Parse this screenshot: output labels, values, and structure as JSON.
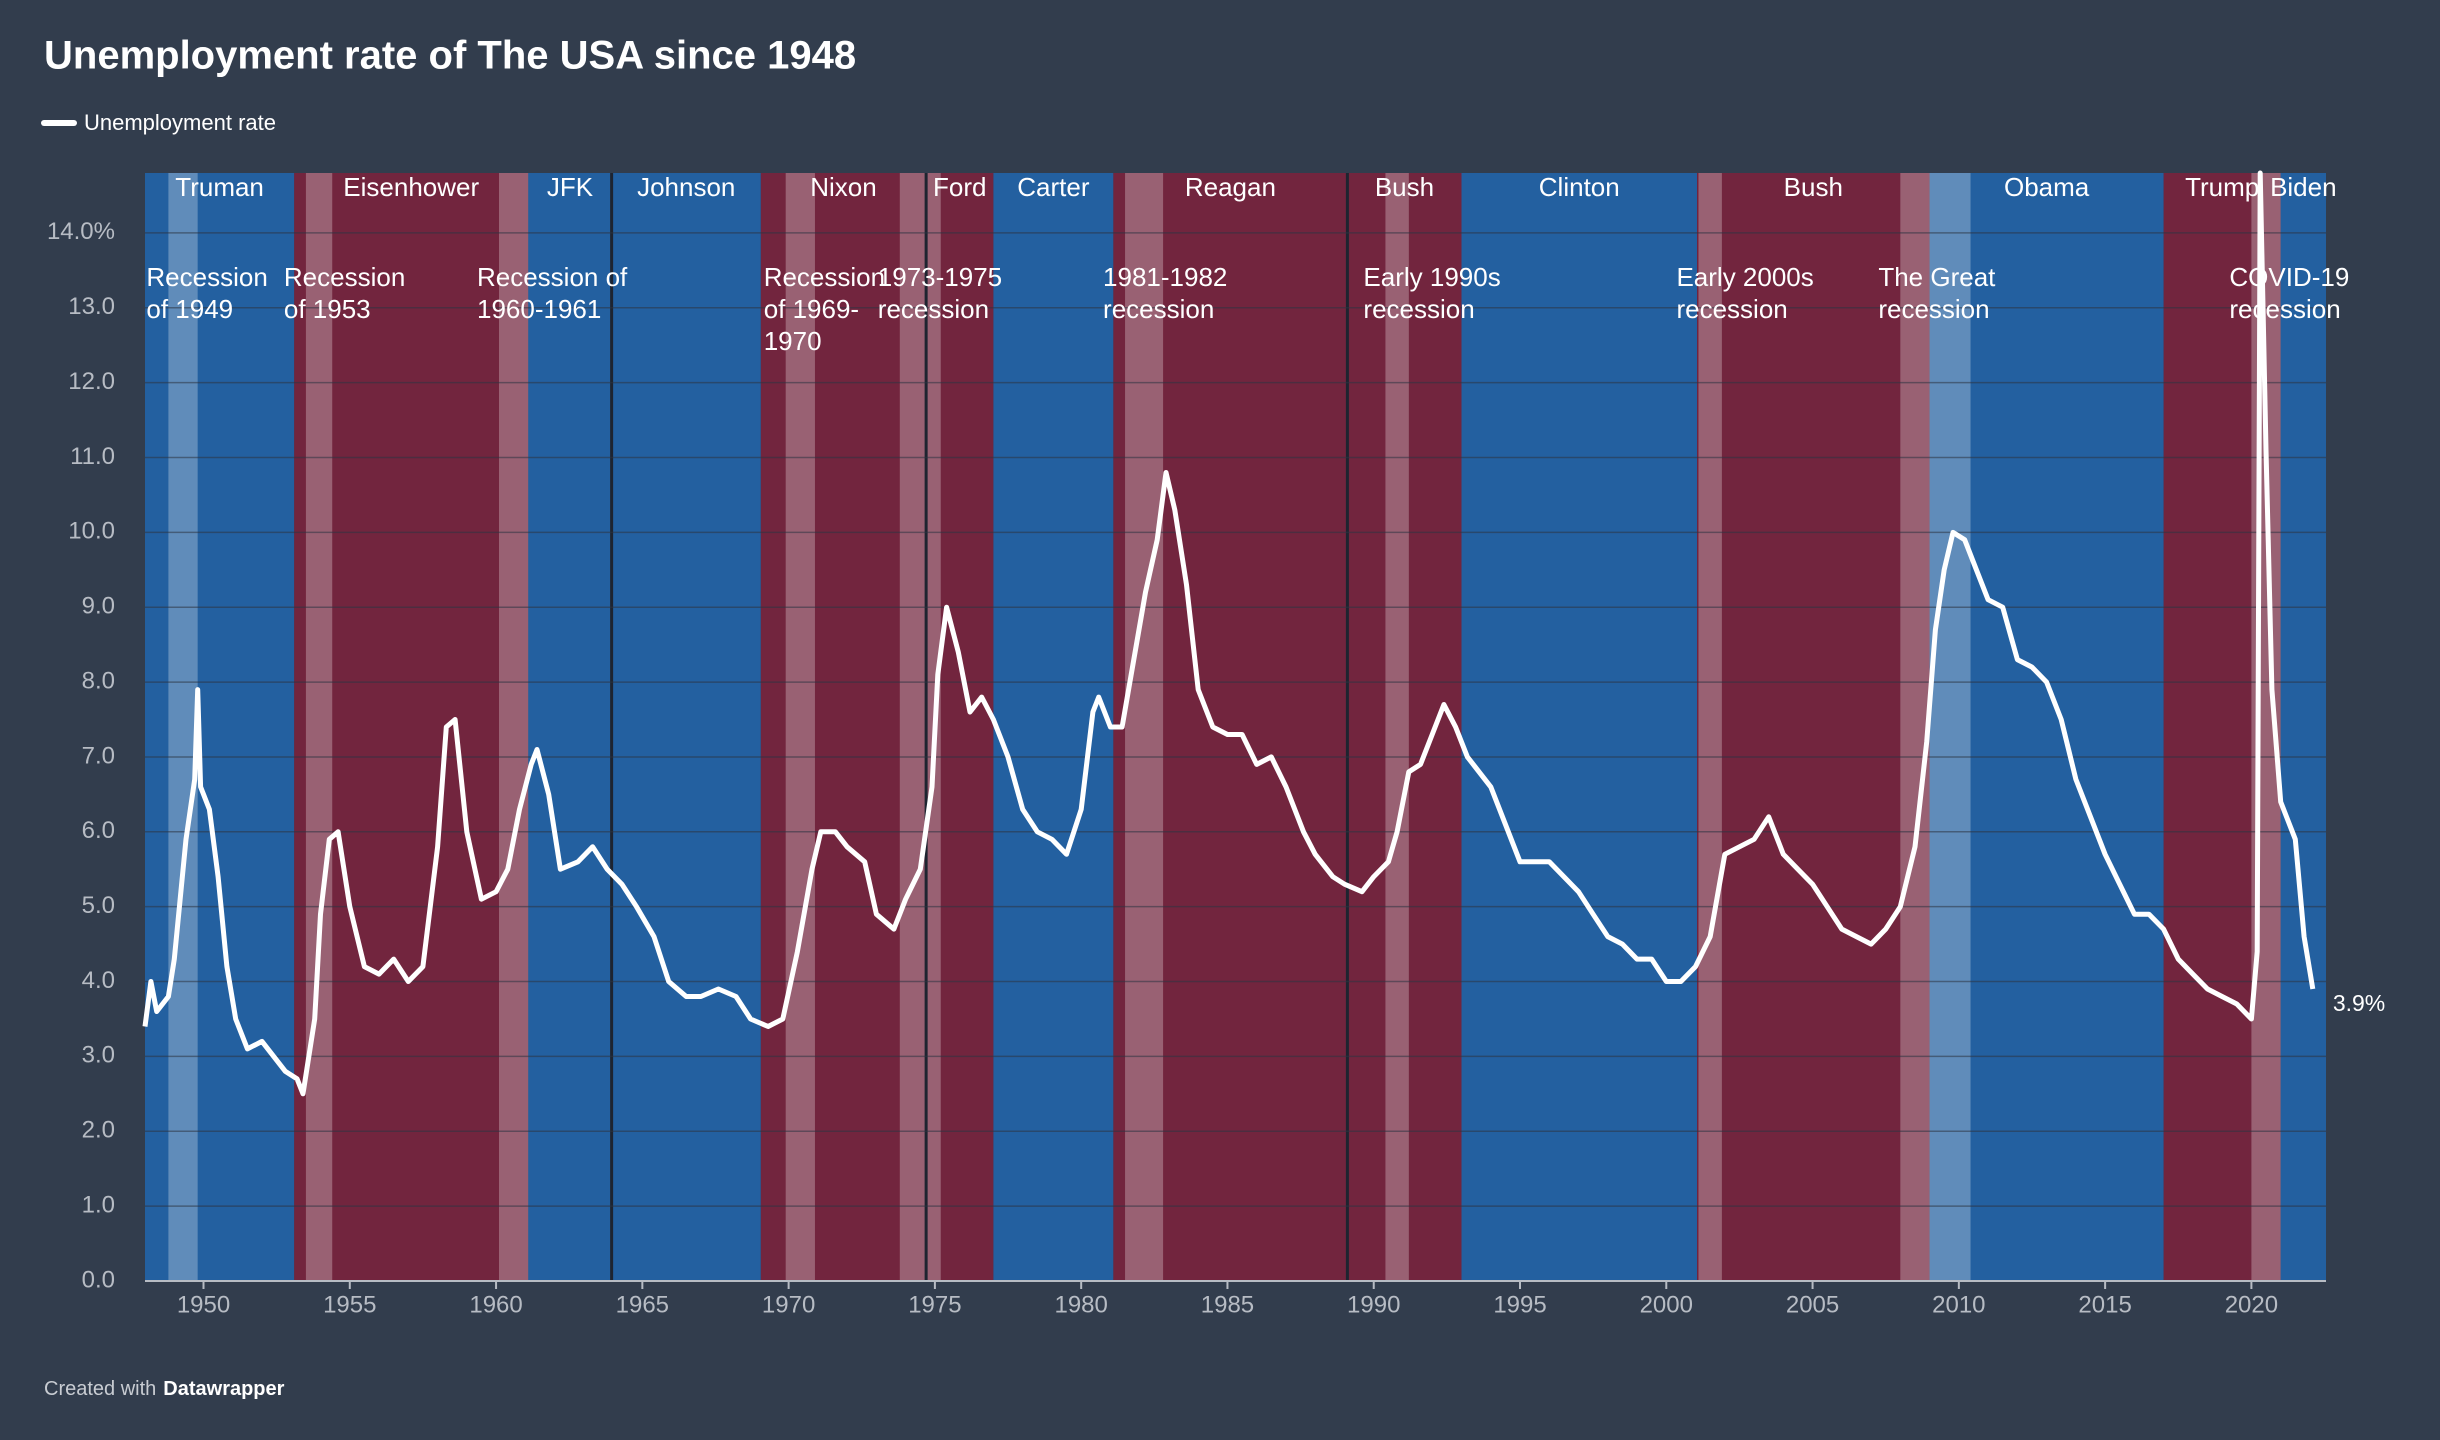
{
  "chart_data": {
    "type": "line",
    "title": "Unemployment rate of The USA since 1948",
    "footer": {
      "prefix": "Created with",
      "brand": "Datawrapper"
    },
    "x": [
      1948.0,
      1948.2,
      1948.4,
      1948.8,
      1949.0,
      1949.4,
      1949.7,
      1949.8,
      1949.9,
      1950.2,
      1950.5,
      1950.8,
      1951.1,
      1951.5,
      1952.0,
      1952.4,
      1952.8,
      1953.2,
      1953.4,
      1953.8,
      1954.0,
      1954.3,
      1954.6,
      1955.0,
      1955.5,
      1956.0,
      1956.5,
      1957.0,
      1957.5,
      1958.0,
      1958.3,
      1958.6,
      1959.0,
      1959.5,
      1960.0,
      1960.4,
      1960.8,
      1961.2,
      1961.4,
      1961.8,
      1962.2,
      1962.8,
      1963.3,
      1963.8,
      1964.3,
      1964.8,
      1965.4,
      1965.9,
      1966.5,
      1967.0,
      1967.6,
      1968.2,
      1968.7,
      1969.3,
      1969.8,
      1970.3,
      1970.8,
      1971.1,
      1971.6,
      1972.0,
      1972.6,
      1973.0,
      1973.6,
      1974.0,
      1974.5,
      1974.9,
      1975.1,
      1975.4,
      1975.8,
      1976.2,
      1976.6,
      1977.0,
      1977.5,
      1978.0,
      1978.5,
      1979.0,
      1979.5,
      1980.0,
      1980.4,
      1980.6,
      1981.0,
      1981.4,
      1981.8,
      1982.2,
      1982.6,
      1982.9,
      1983.2,
      1983.6,
      1984.0,
      1984.5,
      1985.0,
      1985.5,
      1986.0,
      1986.5,
      1987.0,
      1987.6,
      1988.0,
      1988.6,
      1989.0,
      1989.6,
      1990.0,
      1990.5,
      1990.8,
      1991.2,
      1991.6,
      1992.0,
      1992.4,
      1992.8,
      1993.2,
      1993.6,
      1994.0,
      1994.5,
      1995.0,
      1995.5,
      1996.0,
      1996.5,
      1997.0,
      1997.5,
      1998.0,
      1998.5,
      1999.0,
      1999.5,
      2000.0,
      2000.5,
      2001.0,
      2001.5,
      2002.0,
      2002.5,
      2003.0,
      2003.5,
      2004.0,
      2004.5,
      2005.0,
      2005.5,
      2006.0,
      2006.5,
      2007.0,
      2007.5,
      2008.0,
      2008.5,
      2008.9,
      2009.2,
      2009.5,
      2009.8,
      2010.2,
      2010.6,
      2011.0,
      2011.5,
      2012.0,
      2012.5,
      2013.0,
      2013.5,
      2014.0,
      2014.5,
      2015.0,
      2015.5,
      2016.0,
      2016.5,
      2017.0,
      2017.5,
      2018.0,
      2018.5,
      2019.0,
      2019.5,
      2020.0,
      2020.2,
      2020.3,
      2020.5,
      2020.7,
      2021.0,
      2021.5,
      2021.8,
      2022.1
    ],
    "series": [
      {
        "name": "Unemployment rate",
        "color": "#ffffff",
        "values": [
          3.4,
          4.0,
          3.6,
          3.8,
          4.3,
          5.9,
          6.7,
          7.9,
          6.6,
          6.3,
          5.4,
          4.2,
          3.5,
          3.1,
          3.2,
          3.0,
          2.8,
          2.7,
          2.5,
          3.5,
          4.9,
          5.9,
          6.0,
          5.0,
          4.2,
          4.1,
          4.3,
          4.0,
          4.2,
          5.8,
          7.4,
          7.5,
          6.0,
          5.1,
          5.2,
          5.5,
          6.3,
          6.9,
          7.1,
          6.5,
          5.5,
          5.6,
          5.8,
          5.5,
          5.3,
          5.0,
          4.6,
          4.0,
          3.8,
          3.8,
          3.9,
          3.8,
          3.5,
          3.4,
          3.5,
          4.4,
          5.5,
          6.0,
          6.0,
          5.8,
          5.6,
          4.9,
          4.7,
          5.1,
          5.5,
          6.6,
          8.1,
          9.0,
          8.4,
          7.6,
          7.8,
          7.5,
          7.0,
          6.3,
          6.0,
          5.9,
          5.7,
          6.3,
          7.6,
          7.8,
          7.4,
          7.4,
          8.3,
          9.2,
          9.9,
          10.8,
          10.3,
          9.3,
          7.9,
          7.4,
          7.3,
          7.3,
          6.9,
          7.0,
          6.6,
          6.0,
          5.7,
          5.4,
          5.3,
          5.2,
          5.4,
          5.6,
          6.0,
          6.8,
          6.9,
          7.3,
          7.7,
          7.4,
          7.0,
          6.8,
          6.6,
          6.1,
          5.6,
          5.6,
          5.6,
          5.4,
          5.2,
          4.9,
          4.6,
          4.5,
          4.3,
          4.3,
          4.0,
          4.0,
          4.2,
          4.6,
          5.7,
          5.8,
          5.9,
          6.2,
          5.7,
          5.5,
          5.3,
          5.0,
          4.7,
          4.6,
          4.5,
          4.7,
          5.0,
          5.8,
          7.2,
          8.7,
          9.5,
          10.0,
          9.9,
          9.5,
          9.1,
          9.0,
          8.3,
          8.2,
          8.0,
          7.5,
          6.7,
          6.2,
          5.7,
          5.3,
          4.9,
          4.9,
          4.7,
          4.3,
          4.1,
          3.9,
          3.8,
          3.7,
          3.5,
          4.4,
          14.8,
          11.1,
          7.9,
          6.4,
          5.9,
          4.6,
          3.9
        ]
      }
    ],
    "annotations": [
      {
        "x": 2022.1,
        "y": 3.9,
        "label": "3.9%"
      }
    ],
    "presidencies": [
      {
        "name": "Truman",
        "start": 1948.0,
        "end": 1953.1,
        "color": "#2360a0"
      },
      {
        "name": "Eisenhower",
        "start": 1953.1,
        "end": 1961.1,
        "color": "#72253e"
      },
      {
        "name": "JFK",
        "start": 1961.1,
        "end": 1963.95,
        "color": "#2360a0"
      },
      {
        "name": "Johnson",
        "start": 1963.95,
        "end": 1969.05,
        "color": "#2360a0"
      },
      {
        "name": "Nixon",
        "start": 1969.05,
        "end": 1974.7,
        "color": "#72253e"
      },
      {
        "name": "Ford",
        "start": 1974.7,
        "end": 1977.0,
        "color": "#72253e"
      },
      {
        "name": "Carter",
        "start": 1977.0,
        "end": 1981.1,
        "color": "#2360a0"
      },
      {
        "name": "Reagan",
        "start": 1981.1,
        "end": 1989.1,
        "color": "#72253e"
      },
      {
        "name": "Bush",
        "start": 1989.1,
        "end": 1993.0,
        "color": "#72253e"
      },
      {
        "name": "Clinton",
        "start": 1993.0,
        "end": 2001.05,
        "color": "#2360a0"
      },
      {
        "name": "Bush",
        "start": 2001.05,
        "end": 2009.0,
        "color": "#72253e"
      },
      {
        "name": "Obama",
        "start": 2009.0,
        "end": 2017.0,
        "color": "#2360a0"
      },
      {
        "name": "Trump",
        "start": 2017.0,
        "end": 2021.0,
        "color": "#72253e"
      },
      {
        "name": "Biden",
        "start": 2021.0,
        "end": 2022.55,
        "color": "#2360a0"
      }
    ],
    "recessions": [
      {
        "label": [
          "Recession",
          "of 1949"
        ],
        "start": 1948.8,
        "end": 1949.8
      },
      {
        "label": [
          "Recession",
          "of 1953"
        ],
        "start": 1953.5,
        "end": 1954.4
      },
      {
        "label": [
          "Recession of",
          "1960-1961"
        ],
        "start": 1960.1,
        "end": 1961.1
      },
      {
        "label": [
          "Recession",
          "of 1969-",
          "1970"
        ],
        "start": 1969.9,
        "end": 1970.9
      },
      {
        "label": [
          "1973-1975",
          "recession"
        ],
        "start": 1973.8,
        "end": 1975.2
      },
      {
        "label": [
          "1981-1982",
          "recession"
        ],
        "start": 1981.5,
        "end": 1982.8
      },
      {
        "label": [
          "Early 1990s",
          "recession"
        ],
        "start": 1990.4,
        "end": 1991.2
      },
      {
        "label": [
          "Early 2000s",
          "recession"
        ],
        "start": 2001.1,
        "end": 2001.9
      },
      {
        "label": [
          "The Great",
          "recession"
        ],
        "start": 2008.0,
        "end": 2010.4
      },
      {
        "label": [
          "COVID-19",
          "recession"
        ],
        "start": 2020.0,
        "end": 2021.0
      }
    ],
    "xlim": [
      1948.0,
      2022.55
    ],
    "xticks": [
      1950,
      1955,
      1960,
      1965,
      1970,
      1975,
      1980,
      1985,
      1990,
      1995,
      2000,
      2005,
      2010,
      2015,
      2020
    ],
    "ylim": [
      0,
      14.8
    ],
    "yticks": [
      {
        "value": 0,
        "label": "0.0"
      },
      {
        "value": 1,
        "label": "1.0"
      },
      {
        "value": 2,
        "label": "2.0"
      },
      {
        "value": 3,
        "label": "3.0"
      },
      {
        "value": 4,
        "label": "4.0"
      },
      {
        "value": 5,
        "label": "5.0"
      },
      {
        "value": 6,
        "label": "6.0"
      },
      {
        "value": 7,
        "label": "7.0"
      },
      {
        "value": 8,
        "label": "8.0"
      },
      {
        "value": 9,
        "label": "9.0"
      },
      {
        "value": 10,
        "label": "10.0"
      },
      {
        "value": 11,
        "label": "11.0"
      },
      {
        "value": 12,
        "label": "12.0"
      },
      {
        "value": 13,
        "label": "13.0"
      },
      {
        "value": 14,
        "label": "14.0%"
      }
    ],
    "grid": true
  }
}
